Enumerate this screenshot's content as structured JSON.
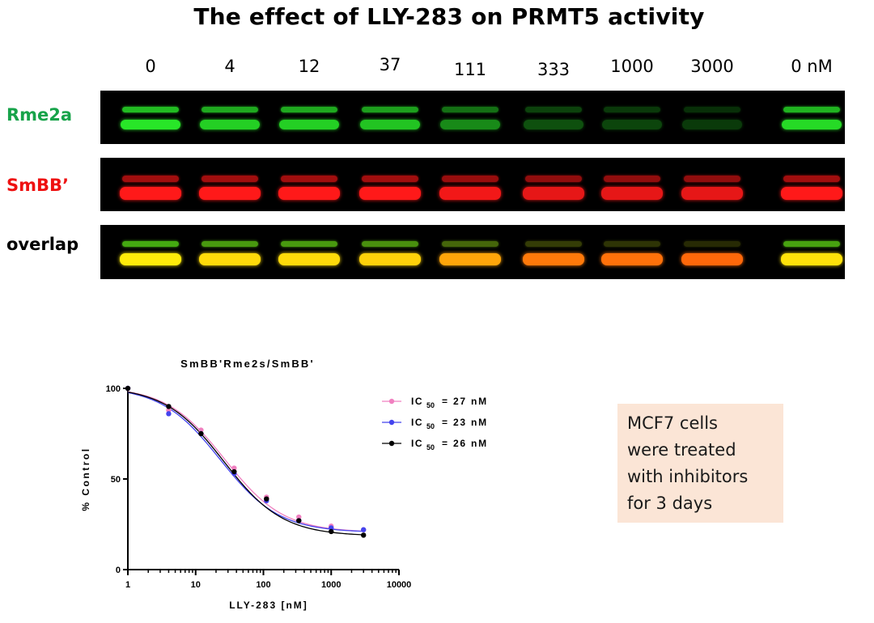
{
  "title": "The effect of LLY-283 on PRMT5 activity",
  "concentrations": [
    "0",
    "4",
    "12",
    "37",
    "111",
    "333",
    "1000",
    "3000",
    "0 nM"
  ],
  "blot_rows": [
    {
      "label": "Rme2a",
      "label_color": "#17a34a"
    },
    {
      "label": "SmBB’",
      "label_color": "#ee1111"
    },
    {
      "label": "overlap",
      "label_color": "#000000"
    }
  ],
  "lane_intensity": {
    "green": [
      1.0,
      0.9,
      0.9,
      0.85,
      0.6,
      0.35,
      0.3,
      0.25,
      0.95
    ],
    "red": [
      1.0,
      1.0,
      1.0,
      1.0,
      0.95,
      0.9,
      0.9,
      0.9,
      1.0
    ]
  },
  "note": [
    "MCF7 cells",
    "were treated",
    "with inhibitors",
    "for 3 days"
  ],
  "colors": {
    "green": "#22dd22",
    "red": "#ff1a1a",
    "yellow": "#ffe000",
    "note_bg": "#fbe5d6"
  },
  "chart_data": {
    "type": "scatter",
    "title": "SmBB'Rme2s/SmBB'",
    "xlabel": "LLY-283 [nM]",
    "ylabel": "% Control",
    "x_scale": "log",
    "xlim": [
      1,
      10000
    ],
    "ylim": [
      0,
      100
    ],
    "x_ticks": [
      "1",
      "10",
      "100",
      "1000",
      "10000"
    ],
    "y_ticks": [
      "0",
      "50",
      "100"
    ],
    "legend_position": "right",
    "series": [
      {
        "name": "IC50 = 27 nM",
        "legend_prefix": "IC",
        "legend_sub": "50",
        "legend_suffix": "= 27 nM",
        "color": "#f080c0",
        "x": [
          1,
          4,
          12,
          37,
          111,
          333,
          1000,
          3000
        ],
        "y": [
          100,
          88,
          77,
          56,
          40,
          29,
          24,
          22
        ],
        "fit": {
          "top": 101,
          "bottom": 20.5,
          "ic50": 27,
          "hill": 1.0
        }
      },
      {
        "name": "IC50 = 23 nM",
        "legend_prefix": "IC",
        "legend_sub": "50",
        "legend_suffix": "= 23 nM",
        "color": "#4444ee",
        "x": [
          1,
          4,
          12,
          37,
          111,
          333,
          1000,
          3000
        ],
        "y": [
          100,
          86,
          75,
          53,
          38,
          27,
          23,
          22
        ],
        "fit": {
          "top": 101,
          "bottom": 20.5,
          "ic50": 23,
          "hill": 1.0
        }
      },
      {
        "name": "IC50 = 26 nM",
        "legend_prefix": "IC",
        "legend_sub": "50",
        "legend_suffix": "= 26 nM",
        "color": "#000000",
        "x": [
          1,
          4,
          12,
          37,
          111,
          333,
          1000,
          3000
        ],
        "y": [
          100,
          90,
          75,
          54,
          39,
          27,
          21,
          19
        ],
        "fit": {
          "top": 101,
          "bottom": 18.5,
          "ic50": 26,
          "hill": 1.0
        }
      }
    ]
  }
}
